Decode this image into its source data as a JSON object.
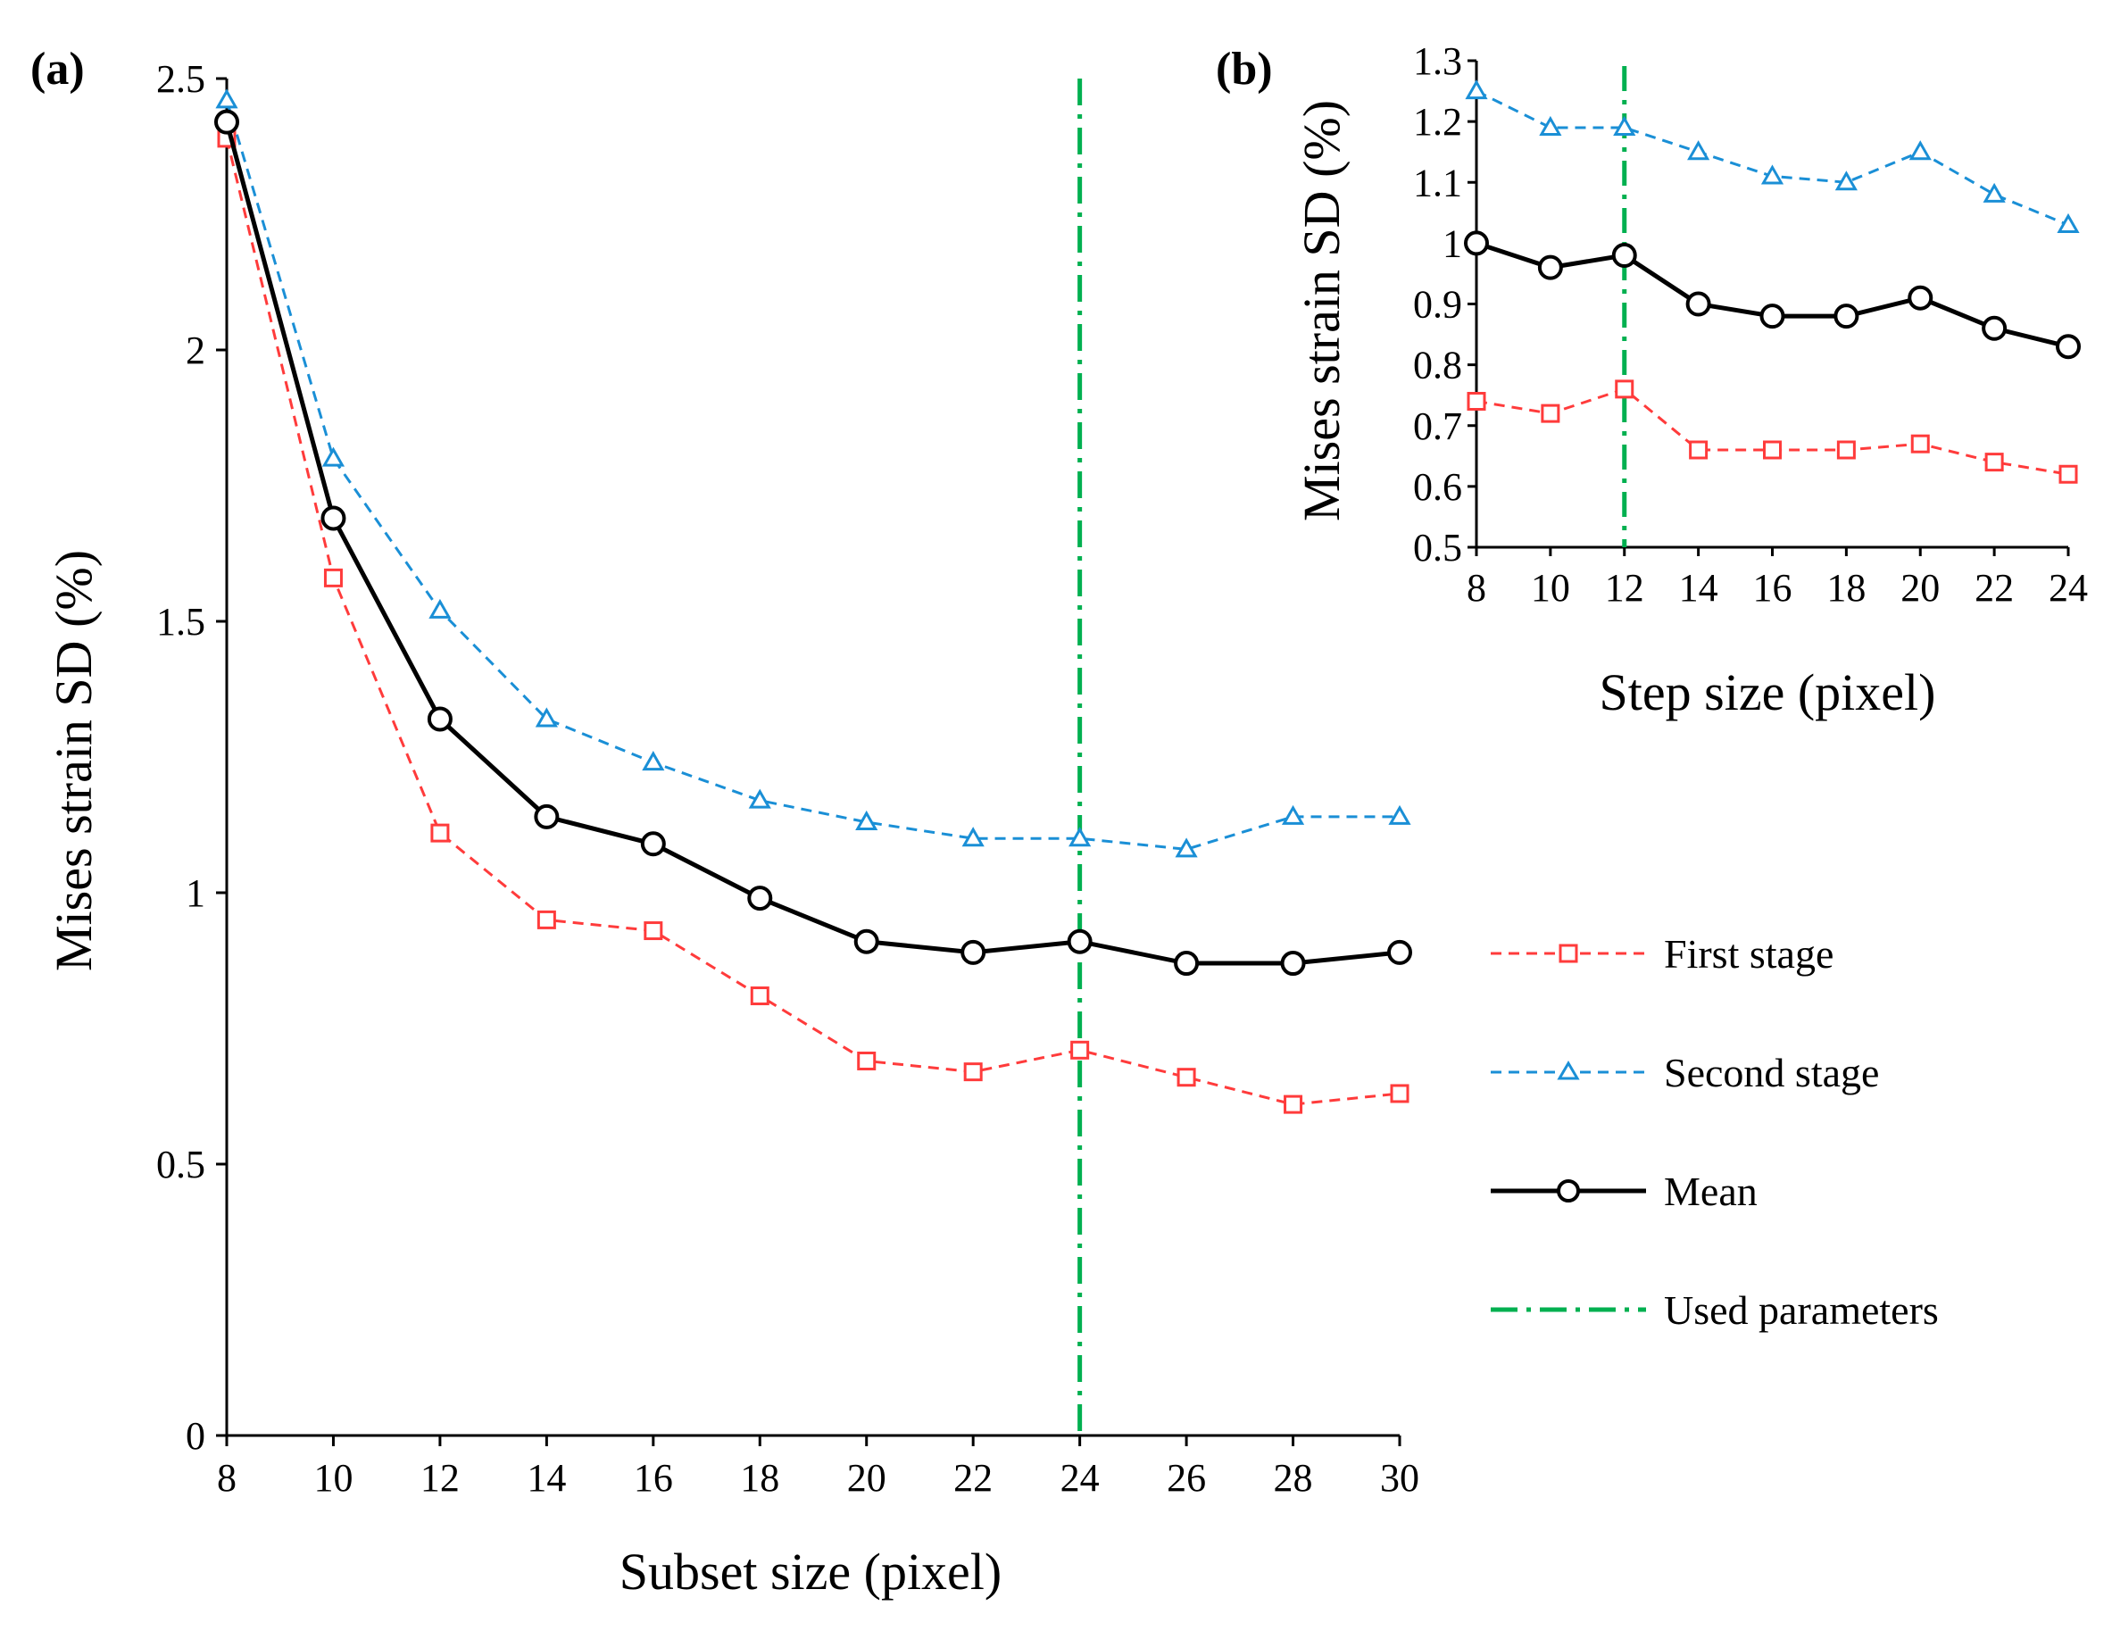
{
  "colors": {
    "first_stage": "#ff3b3b",
    "second_stage": "#1a8fd6",
    "mean": "#000000",
    "used_parameters": "#00b050"
  },
  "legend": {
    "first_stage": "First stage",
    "second_stage": "Second stage",
    "mean": "Mean",
    "used_parameters": "Used parameters"
  },
  "chart_data": [
    {
      "panel": "(a)",
      "type": "line",
      "xlabel": "Subset size (pixel)",
      "ylabel": "Mises strain SD (%)",
      "x": [
        8,
        10,
        12,
        14,
        16,
        18,
        20,
        22,
        24,
        26,
        28,
        30
      ],
      "xlim": [
        8,
        30
      ],
      "xticks": [
        "8",
        "10",
        "12",
        "14",
        "16",
        "18",
        "20",
        "22",
        "24",
        "26",
        "28",
        "30"
      ],
      "ylim": [
        0,
        2.5
      ],
      "yticks": [
        "0",
        "0.5",
        "1",
        "1.5",
        "2",
        "2.5"
      ],
      "used_parameter_x": 24,
      "series": [
        {
          "name": "First stage",
          "marker": "square",
          "values": [
            2.39,
            1.58,
            1.11,
            0.95,
            0.93,
            0.81,
            0.69,
            0.67,
            0.71,
            0.66,
            0.61,
            0.63
          ]
        },
        {
          "name": "Second stage",
          "marker": "triangle",
          "values": [
            2.46,
            1.8,
            1.52,
            1.32,
            1.24,
            1.17,
            1.13,
            1.1,
            1.1,
            1.08,
            1.14,
            1.14
          ]
        },
        {
          "name": "Mean",
          "marker": "circle",
          "values": [
            2.42,
            1.69,
            1.32,
            1.14,
            1.09,
            0.99,
            0.91,
            0.89,
            0.91,
            0.87,
            0.87,
            0.89
          ]
        }
      ]
    },
    {
      "panel": "(b)",
      "type": "line",
      "xlabel": "Step size (pixel)",
      "ylabel": "Mises strain SD (%)",
      "x": [
        8,
        10,
        12,
        14,
        16,
        18,
        20,
        22,
        24
      ],
      "xlim": [
        8,
        24
      ],
      "xticks": [
        "8",
        "10",
        "12",
        "14",
        "16",
        "18",
        "20",
        "22",
        "24"
      ],
      "ylim": [
        0.5,
        1.3
      ],
      "yticks": [
        "0.5",
        "0.6",
        "0.7",
        "0.8",
        "0.9",
        "1",
        "1.1",
        "1.2",
        "1.3"
      ],
      "used_parameter_x": 12,
      "series": [
        {
          "name": "First stage",
          "marker": "square",
          "values": [
            0.74,
            0.72,
            0.76,
            0.66,
            0.66,
            0.66,
            0.67,
            0.64,
            0.62
          ]
        },
        {
          "name": "Second stage",
          "marker": "triangle",
          "values": [
            1.25,
            1.19,
            1.19,
            1.15,
            1.11,
            1.1,
            1.15,
            1.08,
            1.03
          ]
        },
        {
          "name": "Mean",
          "marker": "circle",
          "values": [
            1.0,
            0.96,
            0.98,
            0.9,
            0.88,
            0.88,
            0.91,
            0.86,
            0.83
          ]
        }
      ]
    }
  ]
}
